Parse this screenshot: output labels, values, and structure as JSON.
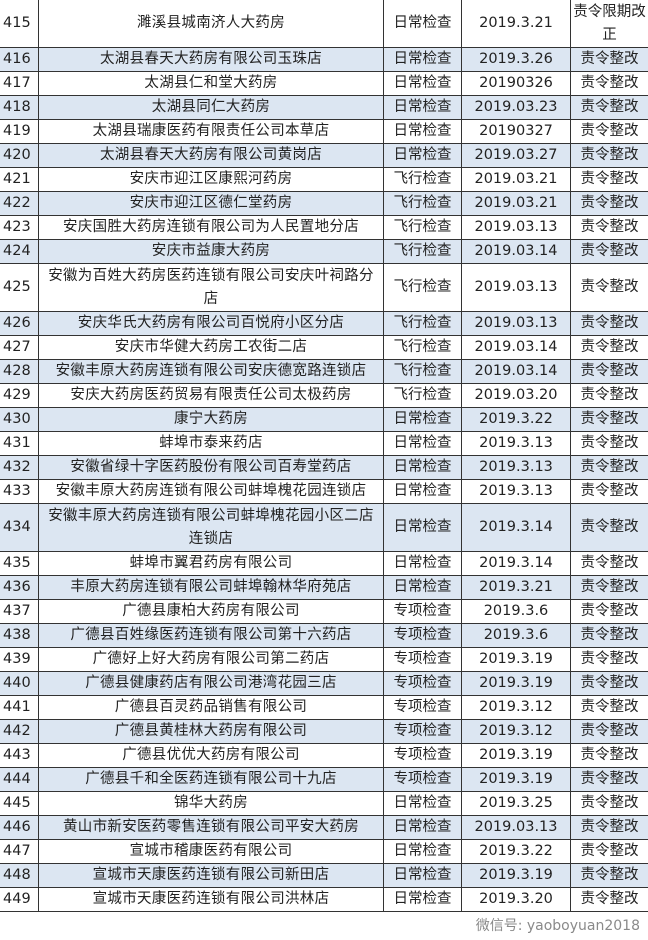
{
  "accent": {
    "alt_row": "#dce6f2",
    "border": "#333333"
  },
  "rows": [
    {
      "no": "415",
      "name": "濉溪县城南济人大药房",
      "type": "日常检查",
      "date": "2019.3.21",
      "result": "责令限期改正"
    },
    {
      "no": "416",
      "name": "太湖县春天大药房有限公司玉珠店",
      "type": "日常检查",
      "date": "2019.3.26",
      "result": "责令整改"
    },
    {
      "no": "417",
      "name": "太湖县仁和堂大药房",
      "type": "日常检查",
      "date": "20190326",
      "result": "责令整改"
    },
    {
      "no": "418",
      "name": "太湖县同仁大药房",
      "type": "日常检查",
      "date": "2019.03.23",
      "result": "责令整改"
    },
    {
      "no": "419",
      "name": "太湖县瑞康医药有限责任公司本草店",
      "type": "日常检查",
      "date": "20190327",
      "result": "责令整改"
    },
    {
      "no": "420",
      "name": "太湖县春天大药房有限公司黄岗店",
      "type": "日常检查",
      "date": "2019.03.27",
      "result": "责令整改"
    },
    {
      "no": "421",
      "name": "安庆市迎江区康熙河药房",
      "type": "飞行检查",
      "date": "2019.03.21",
      "result": "责令整改"
    },
    {
      "no": "422",
      "name": "安庆市迎江区德仁堂药房",
      "type": "飞行检查",
      "date": "2019.03.21",
      "result": "责令整改"
    },
    {
      "no": "423",
      "name": "安庆国胜大药房连锁有限公司为人民置地分店",
      "type": "飞行检查",
      "date": "2019.03.13",
      "result": "责令整改"
    },
    {
      "no": "424",
      "name": "安庆市益康大药房",
      "type": "飞行检查",
      "date": "2019.03.14",
      "result": "责令整改"
    },
    {
      "no": "425",
      "name": "安徽为百姓大药房医药连锁有限公司安庆叶祠路分店",
      "type": "飞行检查",
      "date": "2019.03.13",
      "result": "责令整改"
    },
    {
      "no": "426",
      "name": "安庆华氏大药房有限公司百悦府小区分店",
      "type": "飞行检查",
      "date": "2019.03.13",
      "result": "责令整改"
    },
    {
      "no": "427",
      "name": "安庆市华健大药房工农街二店",
      "type": "飞行检查",
      "date": "2019.03.14",
      "result": "责令整改"
    },
    {
      "no": "428",
      "name": "安徽丰原大药房连锁有限公司安庆德宽路连锁店",
      "type": "飞行检查",
      "date": "2019.03.14",
      "result": "责令整改"
    },
    {
      "no": "429",
      "name": "安庆大药房医药贸易有限责任公司太极药房",
      "type": "飞行检查",
      "date": "2019.03.20",
      "result": "责令整改"
    },
    {
      "no": "430",
      "name": "康宁大药房",
      "type": "日常检查",
      "date": "2019.3.22",
      "result": "责令整改"
    },
    {
      "no": "431",
      "name": "蚌埠市泰来药店",
      "type": "日常检查",
      "date": "2019.3.13",
      "result": "责令整改"
    },
    {
      "no": "432",
      "name": "安徽省绿十字医药股份有限公司百寿堂药店",
      "type": "日常检查",
      "date": "2019.3.13",
      "result": "责令整改"
    },
    {
      "no": "433",
      "name": "安徽丰原大药房连锁有限公司蚌埠槐花园连锁店",
      "type": "日常检查",
      "date": "2019.3.13",
      "result": "责令整改"
    },
    {
      "no": "434",
      "name": "安徽丰原大药房连锁有限公司蚌埠槐花园小区二店连锁店",
      "type": "日常检查",
      "date": "2019.3.14",
      "result": "责令整改"
    },
    {
      "no": "435",
      "name": "蚌埠市翼君药房有限公司",
      "type": "日常检查",
      "date": "2019.3.14",
      "result": "责令整改"
    },
    {
      "no": "436",
      "name": "丰原大药房连锁有限公司蚌埠翰林华府苑店",
      "type": "日常检查",
      "date": "2019.3.21",
      "result": "责令整改"
    },
    {
      "no": "437",
      "name": "广德县康柏大药房有限公司",
      "type": "专项检查",
      "date": "2019.3.6",
      "result": "责令整改"
    },
    {
      "no": "438",
      "name": "广德县百姓缘医药连锁有限公司第十六药店",
      "type": "专项检查",
      "date": "2019.3.6",
      "result": "责令整改"
    },
    {
      "no": "439",
      "name": "广德好上好大药房有限公司第二药店",
      "type": "专项检查",
      "date": "2019.3.19",
      "result": "责令整改"
    },
    {
      "no": "440",
      "name": "广德县健康药店有限公司港湾花园三店",
      "type": "专项检查",
      "date": "2019.3.19",
      "result": "责令整改"
    },
    {
      "no": "441",
      "name": "广德县百灵药品销售有限公司",
      "type": "专项检查",
      "date": "2019.3.12",
      "result": "责令整改"
    },
    {
      "no": "442",
      "name": "广德县黄桂林大药房有限公司",
      "type": "专项检查",
      "date": "2019.3.12",
      "result": "责令整改"
    },
    {
      "no": "443",
      "name": "广德县优优大药房有限公司",
      "type": "专项检查",
      "date": "2019.3.19",
      "result": "责令整改"
    },
    {
      "no": "444",
      "name": "广德县千和全医药连锁有限公司十九店",
      "type": "专项检查",
      "date": "2019.3.19",
      "result": "责令整改"
    },
    {
      "no": "445",
      "name": "锦华大药房",
      "type": "日常检查",
      "date": "2019.3.25",
      "result": "责令整改"
    },
    {
      "no": "446",
      "name": "黄山市新安医药零售连锁有限公司平安大药房",
      "type": "日常检查",
      "date": "2019.03.13",
      "result": "责令整改"
    },
    {
      "no": "447",
      "name": "宣城市稽康医药有限公司",
      "type": "日常检查",
      "date": "2019.3.22",
      "result": "责令整改"
    },
    {
      "no": "448",
      "name": "宣城市天康医药连锁有限公司新田店",
      "type": "日常检查",
      "date": "2019.3.19",
      "result": "责令整改"
    },
    {
      "no": "449",
      "name": "宣城市天康医药连锁有限公司洪林店",
      "type": "日常检查",
      "date": "2019.3.20",
      "result": "责令整改"
    }
  ],
  "watermark": "微信号: yaoboyuan2018"
}
